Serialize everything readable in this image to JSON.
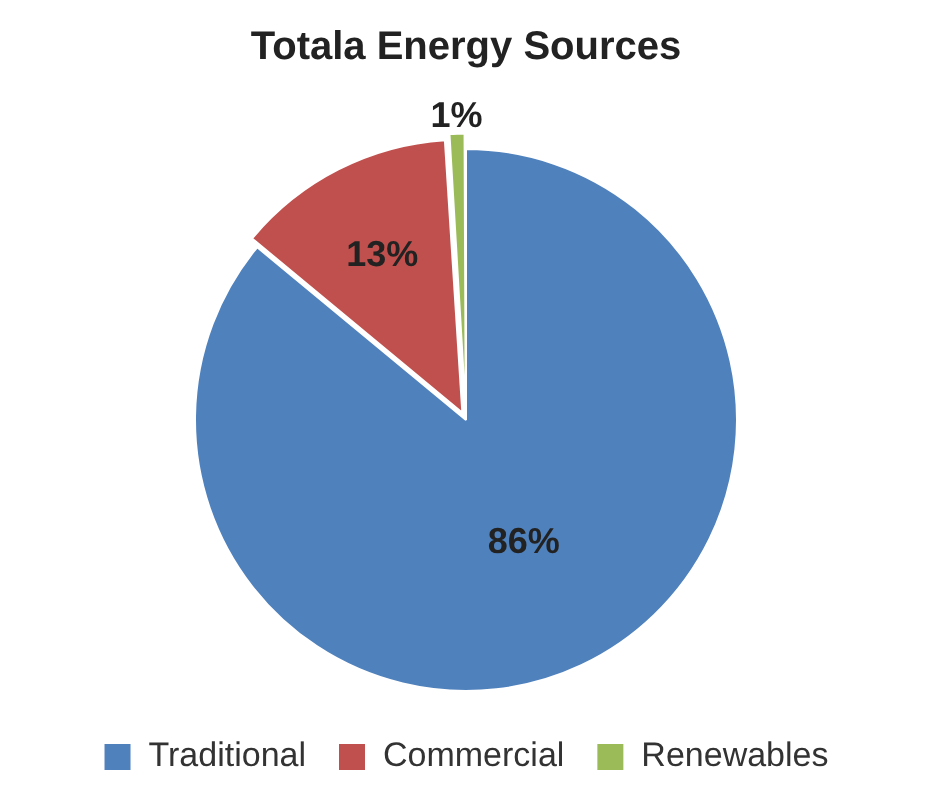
{
  "chart_data": {
    "type": "pie",
    "title": "Totala Energy Sources",
    "categories": [
      "Traditional",
      "Commercial",
      "Renewables"
    ],
    "values": [
      86,
      13,
      1
    ],
    "colors": [
      "#4f81bd",
      "#c0504d",
      "#9bbb59"
    ],
    "value_labels": [
      "86%",
      "13%",
      "1%"
    ],
    "legend": "bottom"
  }
}
